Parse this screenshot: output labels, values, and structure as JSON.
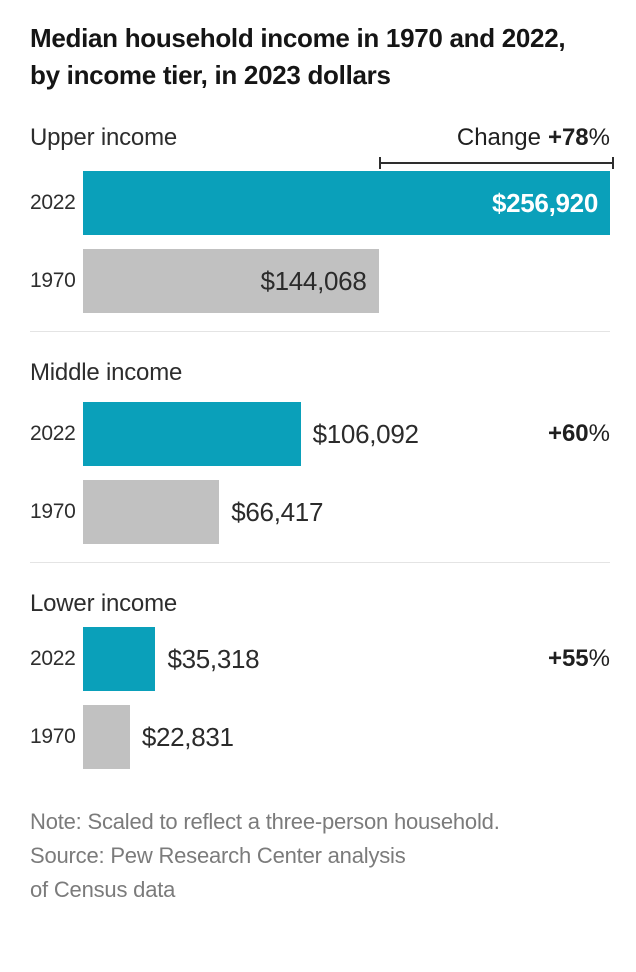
{
  "title": {
    "line1": "Median household income in 1970 and 2022,",
    "line2": "by income tier, in 2023 dollars"
  },
  "chart_data": {
    "type": "bar",
    "orientation": "horizontal",
    "units": "2023 dollars",
    "max_value": 256920,
    "categories": [
      "2022",
      "1970"
    ],
    "colors": {
      "2022": "#0aa0ba",
      "1970": "#c1c1c1"
    },
    "groups": [
      {
        "label": "Upper income",
        "change": {
          "prefix": "Change",
          "value": "+78",
          "suffix": "%"
        },
        "bars": [
          {
            "year": "2022",
            "value": 256920,
            "display": "$256,920"
          },
          {
            "year": "1970",
            "value": 144068,
            "display": "$144,068"
          }
        ]
      },
      {
        "label": "Middle income",
        "change": {
          "prefix": "",
          "value": "+60",
          "suffix": "%"
        },
        "bars": [
          {
            "year": "2022",
            "value": 106092,
            "display": "$106,092"
          },
          {
            "year": "1970",
            "value": 66417,
            "display": "$66,417"
          }
        ]
      },
      {
        "label": "Lower income",
        "change": {
          "prefix": "",
          "value": "+55",
          "suffix": "%"
        },
        "bars": [
          {
            "year": "2022",
            "value": 35318,
            "display": "$35,318"
          },
          {
            "year": "1970",
            "value": 22831,
            "display": "$22,831"
          }
        ]
      }
    ]
  },
  "footer": {
    "note": "Note: Scaled to reflect a three-person household.",
    "source_line1": "Source: Pew Research Center analysis",
    "source_line2": "of Census data"
  }
}
